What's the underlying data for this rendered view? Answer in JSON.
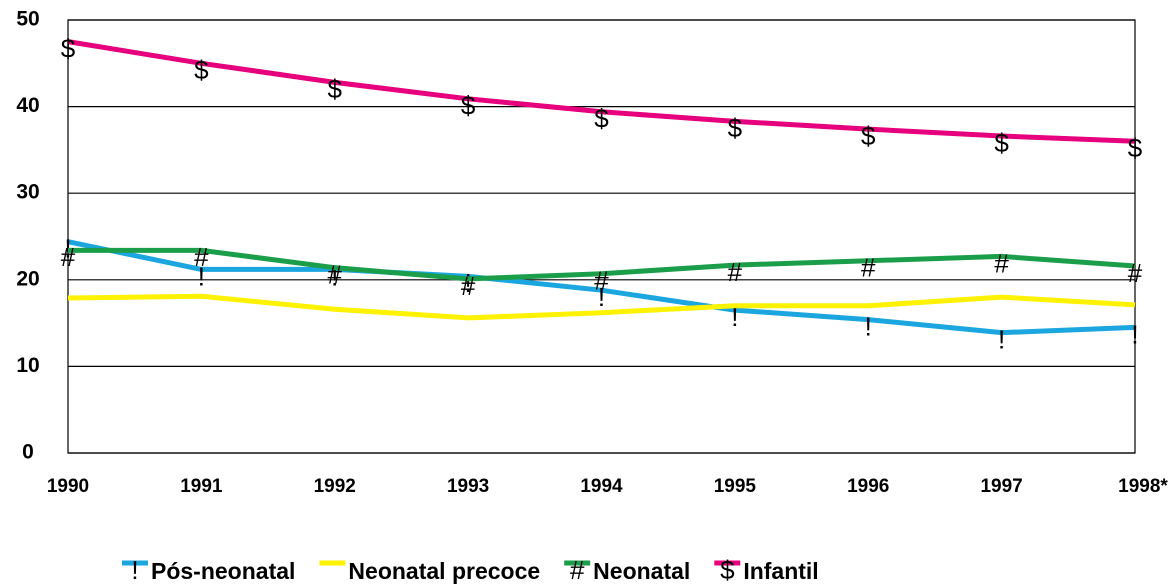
{
  "chart_data": {
    "type": "line",
    "categories": [
      "1990",
      "1991",
      "1992",
      "1993",
      "1994",
      "1995",
      "1996",
      "1997",
      "1998*"
    ],
    "series": [
      {
        "name": "Pós-neonatal",
        "color": "#1ba6e0",
        "marker": "!",
        "values": [
          24.4,
          21.2,
          21.2,
          20.4,
          18.8,
          16.5,
          15.4,
          13.9,
          14.5
        ]
      },
      {
        "name": "Neonatal precoce",
        "color": "#fff200",
        "values": [
          17.9,
          18.1,
          16.6,
          15.6,
          16.2,
          17.0,
          17.0,
          18.0,
          17.1
        ]
      },
      {
        "name": "Neonatal",
        "color": "#1a9e4a",
        "marker": "#",
        "values": [
          23.4,
          23.4,
          21.4,
          20.1,
          20.7,
          21.7,
          22.2,
          22.7,
          21.6
        ]
      },
      {
        "name": "Infantil",
        "color": "#e6007e",
        "marker": "$",
        "values": [
          47.5,
          45.0,
          42.8,
          40.9,
          39.4,
          38.3,
          37.4,
          36.6,
          36.0
        ]
      }
    ],
    "ylim": [
      0,
      50
    ],
    "yticks": [
      0,
      10,
      20,
      30,
      40,
      50
    ],
    "grid": true
  }
}
